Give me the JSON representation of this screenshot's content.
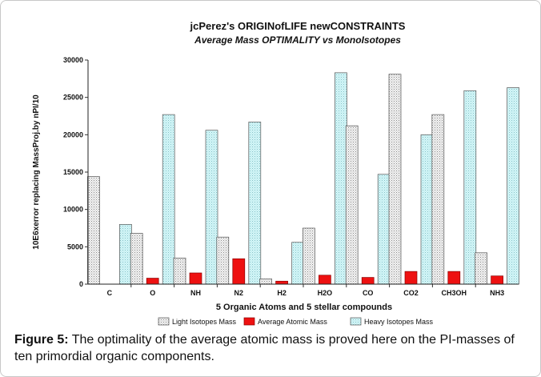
{
  "chart_data": {
    "type": "bar",
    "title": "jcPerez's ORIGINofLIFE newCONSTRAINTS",
    "subtitle": "Average Mass OPTIMALITY vs MonoIsotopes",
    "xlabel": "5 Organic Atoms and 5 stellar compounds",
    "ylabel": "10E6xerror replacing MassProj.by nPI/10",
    "ylim": [
      0,
      30000
    ],
    "yticks": [
      0,
      5000,
      10000,
      15000,
      20000,
      25000,
      30000
    ],
    "categories": [
      "C",
      "O",
      "NH",
      "N2",
      "H2",
      "H2O",
      "CO",
      "CO2",
      "CH3OH",
      "NH3"
    ],
    "legend_position": "bottom",
    "series": [
      {
        "name": "Light Isotopes Mass",
        "color": "#e6e6e6",
        "pattern": "dotted",
        "values": [
          14400,
          6800,
          3500,
          6300,
          700,
          7500,
          21200,
          28100,
          22700,
          4200
        ]
      },
      {
        "name": "Average Atomic Mass",
        "color": "#ee1111",
        "pattern": "solid",
        "values": [
          0,
          800,
          1500,
          3400,
          400,
          1200,
          900,
          1700,
          1700,
          1100
        ]
      },
      {
        "name": "Heavy Isotopes Mass",
        "color": "#c7f1f4",
        "pattern": "dotted",
        "values": [
          8000,
          22700,
          20600,
          21700,
          5600,
          28300,
          14700,
          20000,
          25900,
          26300
        ]
      }
    ]
  },
  "caption": {
    "label": "Figure 5:",
    "text": " The optimality of the average atomic mass is proved here on the PI-masses of ten primordial organic components."
  }
}
